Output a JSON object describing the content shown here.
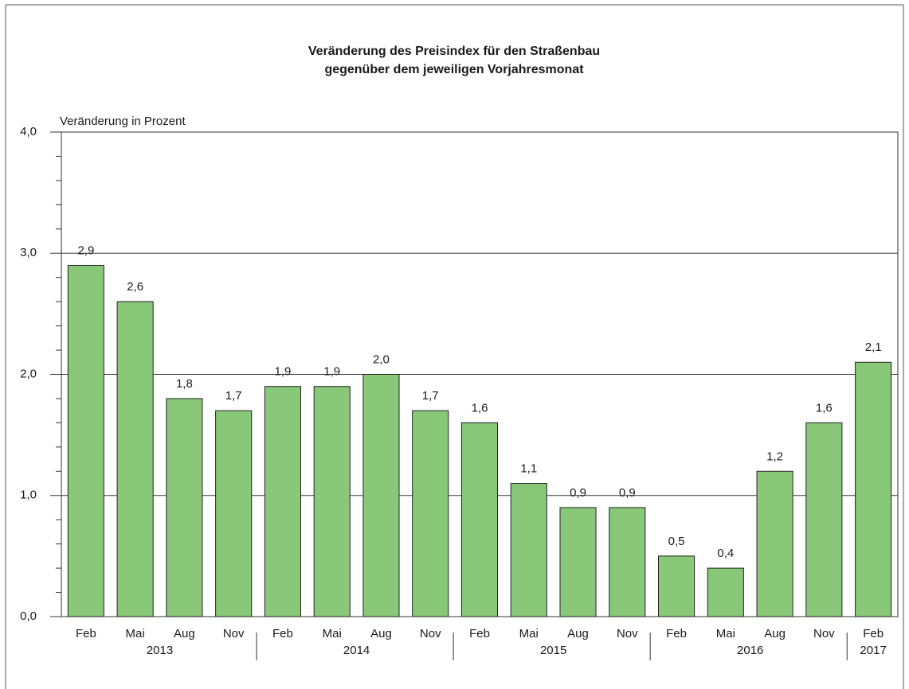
{
  "chart_data": {
    "type": "bar",
    "title": [
      "Veränderung des Preisindex für den Straßenbau",
      "gegenüber dem jeweiligen Vorjahresmonat"
    ],
    "y_axis_label": "Veränderung in Prozent",
    "categories": [
      "Feb",
      "Mai",
      "Aug",
      "Nov",
      "Feb",
      "Mai",
      "Aug",
      "Nov",
      "Feb",
      "Mai",
      "Aug",
      "Nov",
      "Feb",
      "Mai",
      "Aug",
      "Nov",
      "Feb"
    ],
    "years": [
      "2013",
      "2014",
      "2015",
      "2016",
      "2017"
    ],
    "values": [
      2.9,
      2.6,
      1.8,
      1.7,
      1.9,
      1.9,
      2.0,
      1.7,
      1.6,
      1.1,
      0.9,
      0.9,
      0.5,
      0.4,
      1.2,
      1.6,
      2.1
    ],
    "value_labels": [
      "2,9",
      "2,6",
      "1,8",
      "1,7",
      "1,9",
      "1,9",
      "2,0",
      "1,7",
      "1,6",
      "1,1",
      "0,9",
      "0,9",
      "0,5",
      "0,4",
      "1,2",
      "1,6",
      "2,1"
    ],
    "color": "#88c878",
    "ylim": [
      0,
      4
    ],
    "yticks": [
      {
        "value": 0,
        "label": "0,0"
      },
      {
        "value": 1,
        "label": "1,0"
      },
      {
        "value": 2,
        "label": "2,0"
      },
      {
        "value": 3,
        "label": "3,0"
      },
      {
        "value": 4,
        "label": "4,0"
      }
    ],
    "grid": true
  }
}
